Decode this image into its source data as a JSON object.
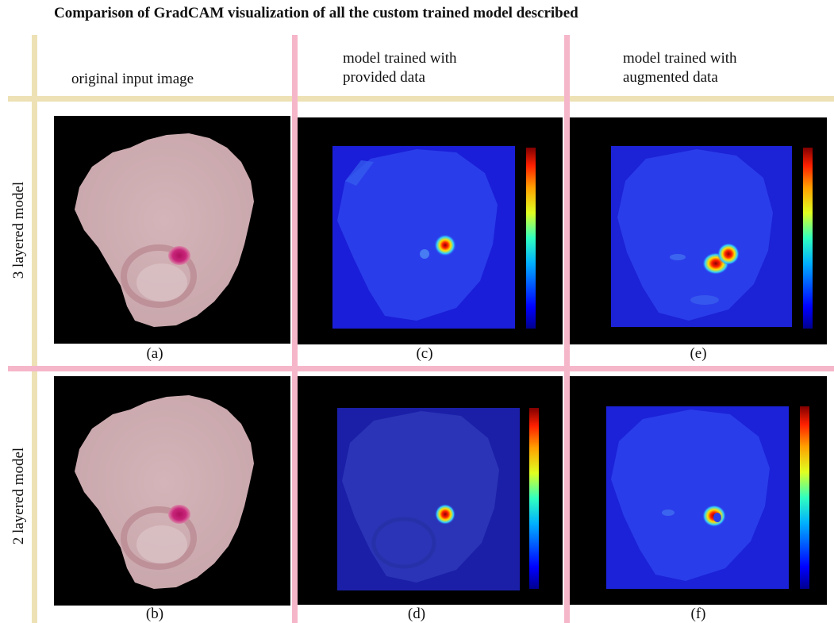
{
  "figure": {
    "title": "Comparison of GradCAM visualization of all the custom trained model described",
    "column_headers": [
      {
        "lines": [
          "original  input image"
        ]
      },
      {
        "lines": [
          "model trained with",
          "provided data"
        ]
      },
      {
        "lines": [
          "model trained with",
          "augmented data"
        ]
      }
    ],
    "row_labels": [
      "3 layered model",
      "2 layered model"
    ],
    "panels": [
      {
        "caption": "(a)",
        "kind": "original"
      },
      {
        "caption": "(c)",
        "kind": "heatmap"
      },
      {
        "caption": "(e)",
        "kind": "heatmap"
      },
      {
        "caption": "(b)",
        "kind": "original"
      },
      {
        "caption": "(d)",
        "kind": "heatmap"
      },
      {
        "caption": "(f)",
        "kind": "heatmap"
      }
    ]
  },
  "colors": {
    "tan_grid_line": "#ede1b5",
    "pink_grid_line": "#f6b6ca",
    "panel_background": "#000000",
    "cell_pink": "#cfaeb3",
    "parasite_magenta": "#c0156f",
    "heatmap_blue": "#2a3dea"
  }
}
